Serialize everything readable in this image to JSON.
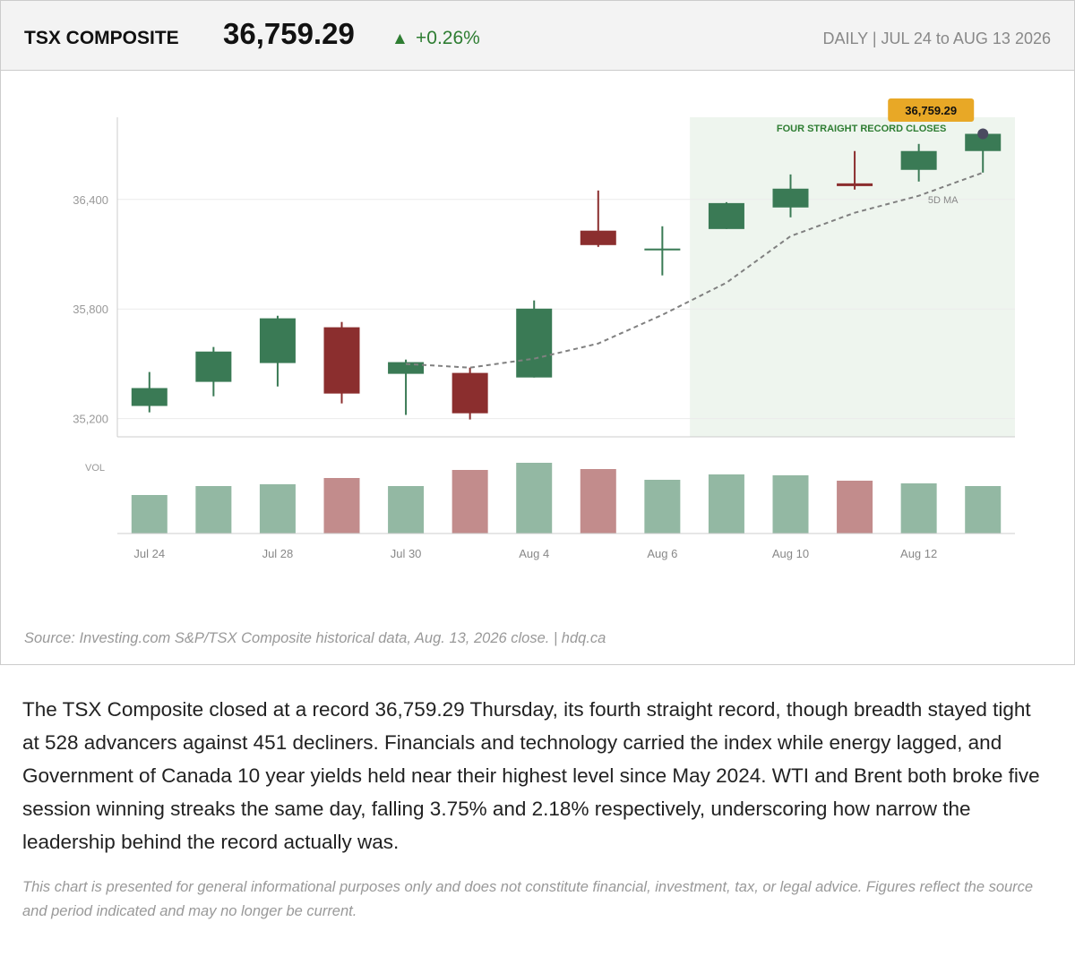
{
  "header": {
    "title": "TSX COMPOSITE",
    "price": "36,759.29",
    "change": "+0.26%",
    "period": "DAILY",
    "range": "JUL 24 to AUG 13 2026"
  },
  "chart_data": {
    "type": "candlestick",
    "categories": [
      "Jul 24",
      null,
      "Jul 28",
      null,
      "Jul 30",
      null,
      "Aug 4",
      null,
      "Aug 6",
      null,
      "Aug 10",
      null,
      "Aug 12",
      null
    ],
    "open": [
      35269,
      35401,
      35504,
      35700,
      35445,
      35450,
      35425,
      36229,
      36121,
      36238,
      36356,
      36488,
      36562,
      36665
    ],
    "high": [
      35455,
      35592,
      35763,
      35729,
      35523,
      35479,
      35847,
      36449,
      36253,
      36385,
      36537,
      36665,
      36704,
      36777
    ],
    "low": [
      35234,
      35322,
      35376,
      35283,
      35220,
      35195,
      35425,
      36140,
      35984,
      36238,
      36302,
      36454,
      36498,
      36547
    ],
    "close": [
      35367,
      35567,
      35749,
      35337,
      35509,
      35229,
      35802,
      36150,
      36131,
      36380,
      36459,
      36473,
      36665,
      36759.29
    ],
    "up_color": "#3a7a55",
    "down_color": "#8b2e2e",
    "ylim": [
      35100,
      36850
    ],
    "yticks": [
      {
        "value": 35200,
        "label": "35,200"
      },
      {
        "value": 35800,
        "label": "35,800"
      },
      {
        "value": 36400,
        "label": "36,400"
      }
    ],
    "grid": true,
    "moving_average": {
      "name": "5D MA",
      "color": "#808080",
      "values": [
        null,
        null,
        null,
        null,
        35499,
        35479,
        35528,
        35611,
        35768,
        35944,
        36199,
        36327,
        36420,
        36547
      ]
    },
    "volume": {
      "label": "VOL",
      "values": [
        43,
        53,
        55,
        62,
        53,
        71,
        79,
        72,
        60,
        66,
        65,
        59,
        56,
        53
      ],
      "ylim": [
        0,
        80
      ],
      "up_color": "#93b8a3",
      "down_color": "#c28c8c"
    },
    "highlight": {
      "start": 9,
      "text": "FOUR STRAIGHT RECORD CLOSES",
      "color": "#eef5ee",
      "text_color": "#2e7d32"
    },
    "callout": {
      "value": 36759.29,
      "label": "36,759.29",
      "color": "#e8a826"
    }
  },
  "source": "Source: Investing.com S&P/TSX Composite historical data, Aug. 13, 2026 close.  |  hdq.ca",
  "body": "The TSX Composite closed at a record 36,759.29 Thursday, its fourth straight record, though breadth stayed tight at 528 advancers against 451 decliners. Financials and technology carried the index while energy lagged, and Government of Canada 10 year yields held near their highest level since May 2024. WTI and Brent both broke five session winning streaks the same day, falling 3.75% and 2.18% respectively, underscoring how narrow the leadership behind the record actually was.",
  "disclaimer": "This chart is presented for general informational purposes only and does not constitute financial, investment, tax, or legal advice. Figures reflect the source and period indicated and may no longer be current."
}
